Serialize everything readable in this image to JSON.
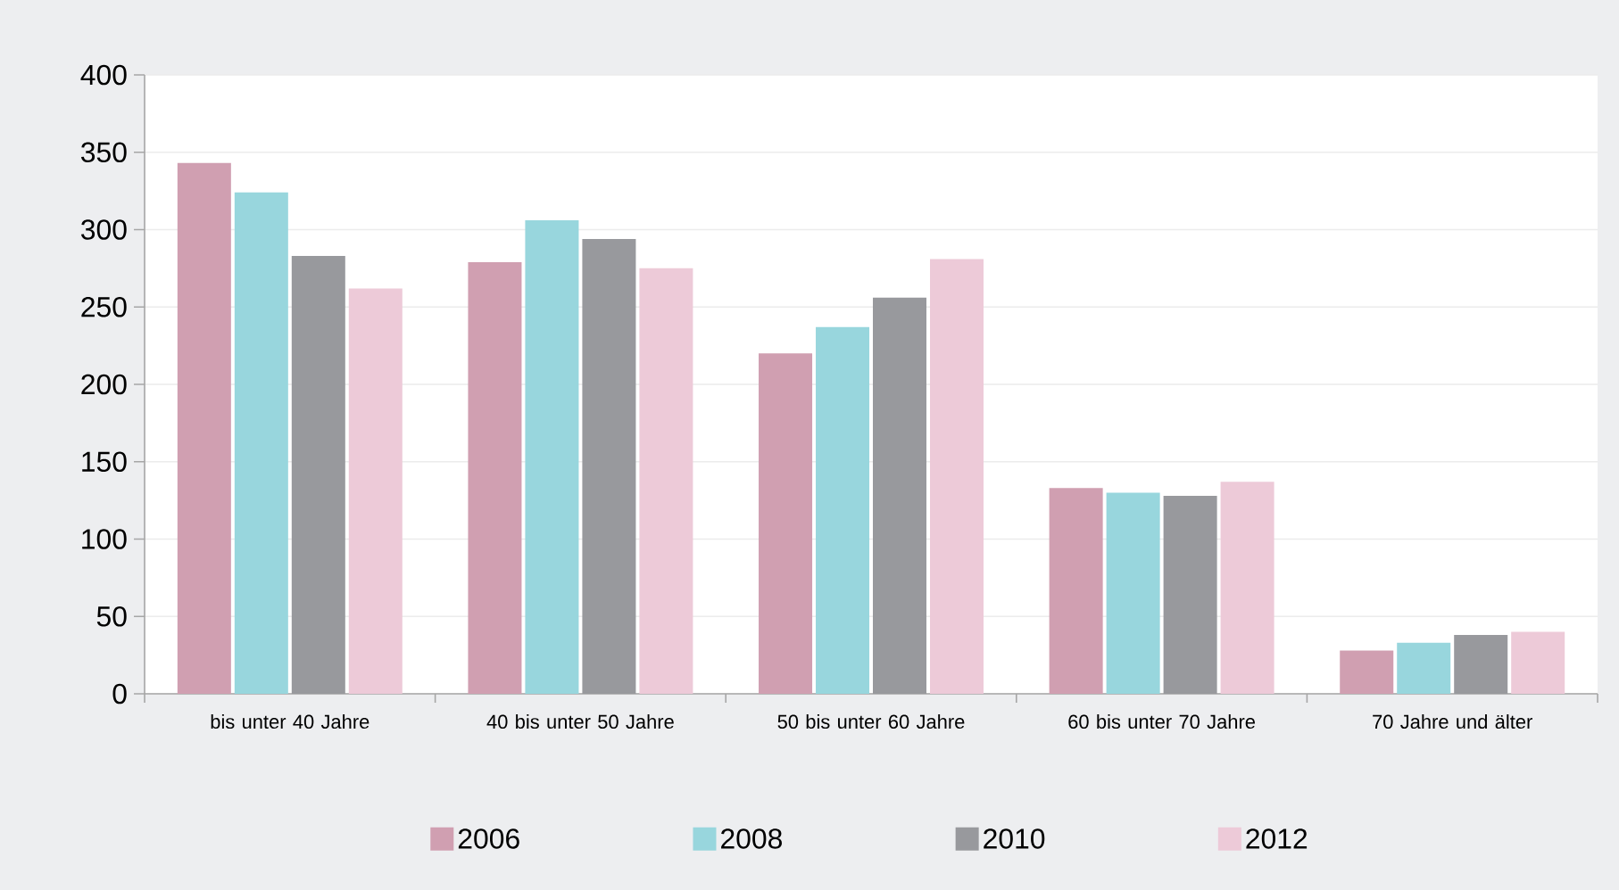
{
  "chart_data": {
    "type": "bar",
    "categories": [
      "bis unter 40 Jahre",
      "40 bis unter 50 Jahre",
      "50 bis unter 60 Jahre",
      "60 bis unter 70 Jahre",
      "70 Jahre und älter"
    ],
    "series": [
      {
        "name": "2006",
        "color": "#d09fb1",
        "values": [
          343,
          279,
          220,
          133,
          28
        ]
      },
      {
        "name": "2008",
        "color": "#98d6dd",
        "values": [
          324,
          306,
          237,
          130,
          33
        ]
      },
      {
        "name": "2010",
        "color": "#98999d",
        "values": [
          283,
          294,
          256,
          128,
          38
        ]
      },
      {
        "name": "2012",
        "color": "#edcad8",
        "values": [
          262,
          275,
          281,
          137,
          40
        ]
      }
    ],
    "ylim": [
      0,
      400
    ],
    "yticks": [
      0,
      50,
      100,
      150,
      200,
      250,
      300,
      350,
      400
    ],
    "grid": "y",
    "legend": "bottom"
  }
}
